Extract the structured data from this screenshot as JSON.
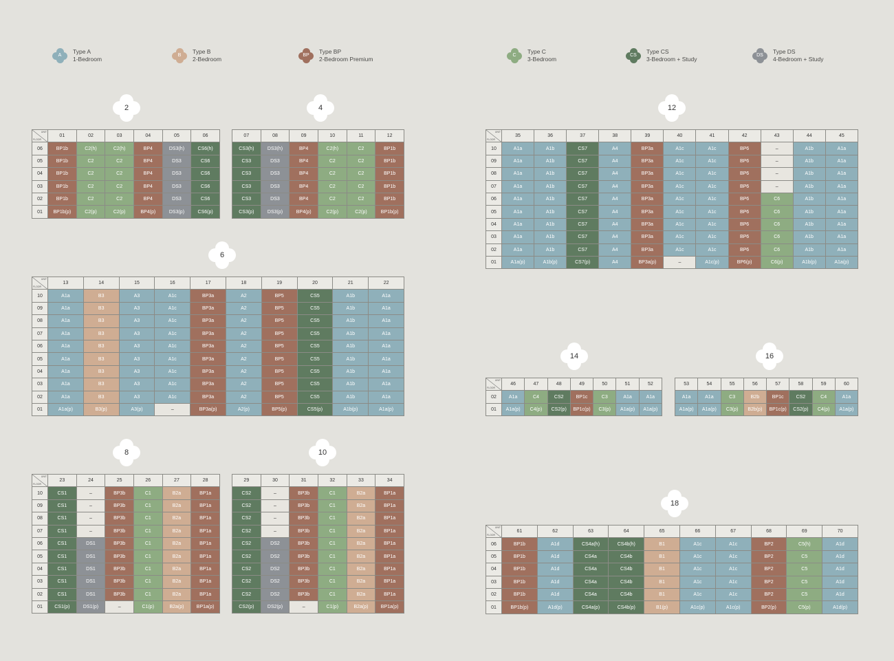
{
  "colors": {
    "A": "#8fb0ba",
    "B": "#cfad93",
    "BP": "#a0705e",
    "C": "#8eac82",
    "CS": "#5f7b60",
    "DS": "#8d9196",
    "E": "#e8e6e0"
  },
  "corner": {
    "unit": "UNIT",
    "floor": "FLOOR"
  },
  "legend": [
    {
      "code": "A",
      "type": "Type A",
      "desc": "1-Bedroom",
      "x": 76
    },
    {
      "code": "B",
      "type": "Type B",
      "desc": "2-Bedroom",
      "x": 250
    },
    {
      "code": "BP",
      "type": "Type BP",
      "desc": "2-Bedroom Premium",
      "x": 434
    },
    {
      "code": "C",
      "type": "Type C",
      "desc": "3-Bedroom",
      "x": 737
    },
    {
      "code": "CS",
      "type": "Type CS",
      "desc": "3-Bedroom + Study",
      "x": 910
    },
    {
      "code": "DS",
      "type": "Type DS",
      "desc": "4-Bedroom + Study",
      "x": 1094
    }
  ],
  "blocks": [
    {
      "label": "2",
      "bx": 164,
      "by": 137,
      "tx": 46,
      "ty": 188,
      "w": 274,
      "units": [
        "01",
        "02",
        "03",
        "04",
        "05",
        "06"
      ],
      "rows": [
        {
          "floor": "06",
          "cells": [
            "BP1b",
            "C2(h)",
            "C2(h)",
            "BP4",
            "DS3(h)",
            "CS6(h)"
          ]
        },
        {
          "floor": "05",
          "cells": [
            "BP1b",
            "C2",
            "C2",
            "BP4",
            "DS3",
            "CS6"
          ]
        },
        {
          "floor": "04",
          "cells": [
            "BP1b",
            "C2",
            "C2",
            "BP4",
            "DS3",
            "CS6"
          ]
        },
        {
          "floor": "03",
          "cells": [
            "BP1b",
            "C2",
            "C2",
            "BP4",
            "DS3",
            "CS6"
          ]
        },
        {
          "floor": "02",
          "cells": [
            "BP1b",
            "C2",
            "C2",
            "BP4",
            "DS3",
            "CS6"
          ]
        },
        {
          "floor": "01",
          "cells": [
            "BP1b(p)",
            "C2(p)",
            "C2(p)",
            "BP4(p)",
            "DS3(p)",
            "CS6(p)"
          ]
        }
      ]
    },
    {
      "label": "4",
      "bx": 446,
      "by": 137,
      "tx": 337,
      "ty": 188,
      "w": 251,
      "nocorner": true,
      "units": [
        "07",
        "08",
        "09",
        "10",
        "11",
        "12"
      ],
      "rows": [
        {
          "floor": "",
          "cells": [
            "CS3(h)",
            "DS3(h)",
            "BP4",
            "C2(h)",
            "C2",
            "BP1b"
          ]
        },
        {
          "floor": "",
          "cells": [
            "CS3",
            "DS3",
            "BP4",
            "C2",
            "C2",
            "BP1b"
          ]
        },
        {
          "floor": "",
          "cells": [
            "CS3",
            "DS3",
            "BP4",
            "C2",
            "C2",
            "BP1b"
          ]
        },
        {
          "floor": "",
          "cells": [
            "CS3",
            "DS3",
            "BP4",
            "C2",
            "C2",
            "BP1b"
          ]
        },
        {
          "floor": "",
          "cells": [
            "CS3",
            "DS3",
            "BP4",
            "C2",
            "C2",
            "BP1b"
          ]
        },
        {
          "floor": "",
          "cells": [
            "CS3(p)",
            "DS3(p)",
            "BP4(p)",
            "C2(p)",
            "C2(p)",
            "BP1b(p)"
          ]
        }
      ]
    },
    {
      "label": "6",
      "bx": 303,
      "by": 351,
      "tx": 46,
      "ty": 402,
      "w": 542,
      "units": [
        "13",
        "14",
        "15",
        "16",
        "17",
        "18",
        "19",
        "20",
        "21",
        "22"
      ],
      "rows": [
        {
          "floor": "10",
          "cells": [
            "A1a",
            "B3",
            "A3",
            "A1c",
            "BP3a",
            "A2",
            "BP5",
            "CS5",
            "A1b",
            "A1a"
          ]
        },
        {
          "floor": "09",
          "cells": [
            "A1a",
            "B3",
            "A3",
            "A1c",
            "BP3a",
            "A2",
            "BP5",
            "CS5",
            "A1b",
            "A1a"
          ]
        },
        {
          "floor": "08",
          "cells": [
            "A1a",
            "B3",
            "A3",
            "A1c",
            "BP3a",
            "A2",
            "BP5",
            "CS5",
            "A1b",
            "A1a"
          ]
        },
        {
          "floor": "07",
          "cells": [
            "A1a",
            "B3",
            "A3",
            "A1c",
            "BP3a",
            "A2",
            "BP5",
            "CS5",
            "A1b",
            "A1a"
          ]
        },
        {
          "floor": "06",
          "cells": [
            "A1a",
            "B3",
            "A3",
            "A1c",
            "BP3a",
            "A2",
            "BP5",
            "CS5",
            "A1b",
            "A1a"
          ]
        },
        {
          "floor": "05",
          "cells": [
            "A1a",
            "B3",
            "A3",
            "A1c",
            "BP3a",
            "A2",
            "BP5",
            "CS5",
            "A1b",
            "A1a"
          ]
        },
        {
          "floor": "04",
          "cells": [
            "A1a",
            "B3",
            "A3",
            "A1c",
            "BP3a",
            "A2",
            "BP5",
            "CS5",
            "A1b",
            "A1a"
          ]
        },
        {
          "floor": "03",
          "cells": [
            "A1a",
            "B3",
            "A3",
            "A1c",
            "BP3a",
            "A2",
            "BP5",
            "CS5",
            "A1b",
            "A1a"
          ]
        },
        {
          "floor": "02",
          "cells": [
            "A1a",
            "B3",
            "A3",
            "A1c",
            "BP3a",
            "A2",
            "BP5",
            "CS5",
            "A1b",
            "A1a"
          ]
        },
        {
          "floor": "01",
          "cells": [
            "A1a(p)",
            "B3(p)",
            "A3(p)",
            "–",
            "BP3a(p)",
            "A2(p)",
            "BP5(p)",
            "CS5(p)",
            "A1b(p)",
            "A1a(p)"
          ]
        }
      ]
    },
    {
      "label": "8",
      "bx": 164,
      "by": 638,
      "tx": 46,
      "ty": 689,
      "w": 274,
      "units": [
        "23",
        "24",
        "25",
        "26",
        "27",
        "28"
      ],
      "rows": [
        {
          "floor": "10",
          "cells": [
            "CS1",
            "–",
            "BP3b",
            "C1",
            "B2a",
            "BP1a"
          ]
        },
        {
          "floor": "09",
          "cells": [
            "CS1",
            "–",
            "BP3b",
            "C1",
            "B2a",
            "BP1a"
          ]
        },
        {
          "floor": "08",
          "cells": [
            "CS1",
            "–",
            "BP3b",
            "C1",
            "B2a",
            "BP1a"
          ]
        },
        {
          "floor": "07",
          "cells": [
            "CS1",
            "–",
            "BP3b",
            "C1",
            "B2a",
            "BP1a"
          ]
        },
        {
          "floor": "06",
          "cells": [
            "CS1",
            "DS1",
            "BP3b",
            "C1",
            "B2a",
            "BP1a"
          ]
        },
        {
          "floor": "05",
          "cells": [
            "CS1",
            "DS1",
            "BP3b",
            "C1",
            "B2a",
            "BP1a"
          ]
        },
        {
          "floor": "04",
          "cells": [
            "CS1",
            "DS1",
            "BP3b",
            "C1",
            "B2a",
            "BP1a"
          ]
        },
        {
          "floor": "03",
          "cells": [
            "CS1",
            "DS1",
            "BP3b",
            "C1",
            "B2a",
            "BP1a"
          ]
        },
        {
          "floor": "02",
          "cells": [
            "CS1",
            "DS1",
            "BP3b",
            "C1",
            "B2a",
            "BP1a"
          ]
        },
        {
          "floor": "01",
          "cells": [
            "CS1(p)",
            "DS1(p)",
            "–",
            "C1(p)",
            "B2a(p)",
            "BP1a(p)"
          ]
        }
      ]
    },
    {
      "label": "10",
      "bx": 449,
      "by": 638,
      "tx": 337,
      "ty": 689,
      "w": 251,
      "nocorner": true,
      "units": [
        "29",
        "30",
        "31",
        "32",
        "33",
        "34"
      ],
      "rows": [
        {
          "floor": "",
          "cells": [
            "CS2",
            "–",
            "BP3b",
            "C1",
            "B2a",
            "BP1a"
          ]
        },
        {
          "floor": "",
          "cells": [
            "CS2",
            "–",
            "BP3b",
            "C1",
            "B2a",
            "BP1a"
          ]
        },
        {
          "floor": "",
          "cells": [
            "CS2",
            "–",
            "BP3b",
            "C1",
            "B2a",
            "BP1a"
          ]
        },
        {
          "floor": "",
          "cells": [
            "CS2",
            "–",
            "BP3b",
            "C1",
            "B2a",
            "BP1a"
          ]
        },
        {
          "floor": "",
          "cells": [
            "CS2",
            "DS2",
            "BP3b",
            "C1",
            "B2a",
            "BP1a"
          ]
        },
        {
          "floor": "",
          "cells": [
            "CS2",
            "DS2",
            "BP3b",
            "C1",
            "B2a",
            "BP1a"
          ]
        },
        {
          "floor": "",
          "cells": [
            "CS2",
            "DS2",
            "BP3b",
            "C1",
            "B2a",
            "BP1a"
          ]
        },
        {
          "floor": "",
          "cells": [
            "CS2",
            "DS2",
            "BP3b",
            "C1",
            "B2a",
            "BP1a"
          ]
        },
        {
          "floor": "",
          "cells": [
            "CS2",
            "DS2",
            "BP3b",
            "C1",
            "B2a",
            "BP1a"
          ]
        },
        {
          "floor": "",
          "cells": [
            "CS2(p)",
            "DS2(p)",
            "–",
            "C1(p)",
            "B2a(p)",
            "BP1a(p)"
          ]
        }
      ]
    },
    {
      "label": "12",
      "bx": 957,
      "by": 137,
      "tx": 706,
      "ty": 188,
      "w": 542,
      "units": [
        "35",
        "36",
        "37",
        "38",
        "39",
        "40",
        "41",
        "42",
        "43",
        "44",
        "45"
      ],
      "rows": [
        {
          "floor": "10",
          "cells": [
            "A1a",
            "A1b",
            "CS7",
            "A4",
            "BP3a",
            "A1c",
            "A1c",
            "BP6",
            "–",
            "A1b",
            "A1a"
          ]
        },
        {
          "floor": "09",
          "cells": [
            "A1a",
            "A1b",
            "CS7",
            "A4",
            "BP3a",
            "A1c",
            "A1c",
            "BP6",
            "–",
            "A1b",
            "A1a"
          ]
        },
        {
          "floor": "08",
          "cells": [
            "A1a",
            "A1b",
            "CS7",
            "A4",
            "BP3a",
            "A1c",
            "A1c",
            "BP6",
            "–",
            "A1b",
            "A1a"
          ]
        },
        {
          "floor": "07",
          "cells": [
            "A1a",
            "A1b",
            "CS7",
            "A4",
            "BP3a",
            "A1c",
            "A1c",
            "BP6",
            "–",
            "A1b",
            "A1a"
          ]
        },
        {
          "floor": "06",
          "cells": [
            "A1a",
            "A1b",
            "CS7",
            "A4",
            "BP3a",
            "A1c",
            "A1c",
            "BP6",
            "C6",
            "A1b",
            "A1a"
          ]
        },
        {
          "floor": "05",
          "cells": [
            "A1a",
            "A1b",
            "CS7",
            "A4",
            "BP3a",
            "A1c",
            "A1c",
            "BP6",
            "C6",
            "A1b",
            "A1a"
          ]
        },
        {
          "floor": "04",
          "cells": [
            "A1a",
            "A1b",
            "CS7",
            "A4",
            "BP3a",
            "A1c",
            "A1c",
            "BP6",
            "C6",
            "A1b",
            "A1a"
          ]
        },
        {
          "floor": "03",
          "cells": [
            "A1a",
            "A1b",
            "CS7",
            "A4",
            "BP3a",
            "A1c",
            "A1c",
            "BP6",
            "C6",
            "A1b",
            "A1a"
          ]
        },
        {
          "floor": "02",
          "cells": [
            "A1a",
            "A1b",
            "CS7",
            "A4",
            "BP3a",
            "A1c",
            "A1c",
            "BP6",
            "C6",
            "A1b",
            "A1a"
          ]
        },
        {
          "floor": "01",
          "cells": [
            "A1a(p)",
            "A1b(p)",
            "CS7(p)",
            "A4",
            "BP3a(p)",
            "–",
            "A1c(p)",
            "BP6(p)",
            "C6(p)",
            "A1b(p)",
            "A1a(p)"
          ]
        }
      ]
    },
    {
      "label": "14",
      "bx": 815,
      "by": 498,
      "tx": 706,
      "ty": 549,
      "w": 257,
      "units": [
        "46",
        "47",
        "48",
        "49",
        "50",
        "51",
        "52"
      ],
      "rows": [
        {
          "floor": "02",
          "cells": [
            "A1a",
            "C4",
            "CS2",
            "BP1c",
            "C3",
            "A1a",
            "A1a"
          ]
        },
        {
          "floor": "01",
          "cells": [
            "A1a(p)",
            "C4(p)",
            "CS2(p)",
            "BP1c(p)",
            "C3(p)",
            "A1a(p)",
            "A1a(p)"
          ]
        }
      ]
    },
    {
      "label": "16",
      "bx": 1099,
      "by": 498,
      "tx": 981,
      "ty": 549,
      "w": 267,
      "nocorner": true,
      "units": [
        "53",
        "54",
        "55",
        "56",
        "57",
        "58",
        "59",
        "60"
      ],
      "rows": [
        {
          "floor": "",
          "cells": [
            "A1a",
            "A1a",
            "C3",
            "B2b",
            "BP1c",
            "CS2",
            "C4",
            "A1a"
          ]
        },
        {
          "floor": "",
          "cells": [
            "A1a(p)",
            "A1a(p)",
            "C3(p)",
            "B2b(p)",
            "BP1c(p)",
            "CS2(p)",
            "C4(p)",
            "A1a(p)"
          ]
        }
      ]
    },
    {
      "label": "18",
      "bx": 961,
      "by": 712,
      "tx": 706,
      "ty": 763,
      "w": 542,
      "units": [
        "61",
        "62",
        "63",
        "64",
        "65",
        "66",
        "67",
        "68",
        "69",
        "70"
      ],
      "rows": [
        {
          "floor": "06",
          "cells": [
            "BP1b",
            "A1d",
            "CS4a(h)",
            "CS4b(h)",
            "B1",
            "A1c",
            "A1c",
            "BP2",
            "C5(h)",
            "A1d"
          ]
        },
        {
          "floor": "05",
          "cells": [
            "BP1b",
            "A1d",
            "CS4a",
            "CS4b",
            "B1",
            "A1c",
            "A1c",
            "BP2",
            "C5",
            "A1d"
          ]
        },
        {
          "floor": "04",
          "cells": [
            "BP1b",
            "A1d",
            "CS4a",
            "CS4b",
            "B1",
            "A1c",
            "A1c",
            "BP2",
            "C5",
            "A1d"
          ]
        },
        {
          "floor": "03",
          "cells": [
            "BP1b",
            "A1d",
            "CS4a",
            "CS4b",
            "B1",
            "A1c",
            "A1c",
            "BP2",
            "C5",
            "A1d"
          ]
        },
        {
          "floor": "02",
          "cells": [
            "BP1b",
            "A1d",
            "CS4a",
            "CS4b",
            "B1",
            "A1c",
            "A1c",
            "BP2",
            "C5",
            "A1d"
          ]
        },
        {
          "floor": "01",
          "cells": [
            "BP1b(p)",
            "A1d(p)",
            "CS4a(p)",
            "CS4b(p)",
            "B1(p)",
            "A1c(p)",
            "A1c(p)",
            "BP2(p)",
            "C5(p)",
            "A1d(p)"
          ]
        }
      ]
    }
  ]
}
